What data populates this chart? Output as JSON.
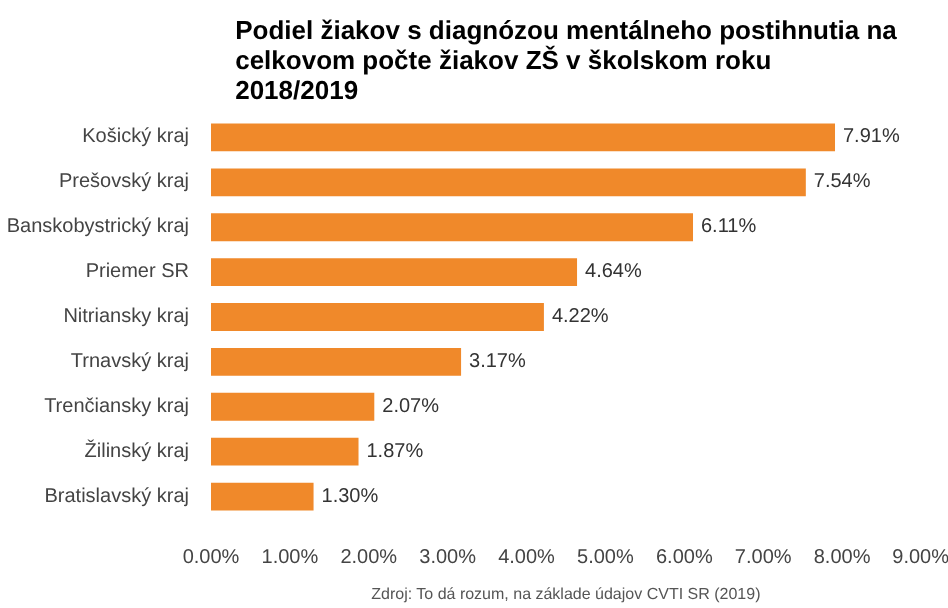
{
  "chart_data": {
    "type": "bar",
    "orientation": "horizontal",
    "title": "Podiel žiakov s diagnózou mentálneho postihnutia na\ncelkovom počte žiakov ZŠ v školskom roku\n2018/2019",
    "categories": [
      "Košický kraj",
      "Prešovský kraj",
      "Banskobystrický kraj",
      "Priemer SR",
      "Nitriansky kraj",
      "Trnavský kraj",
      "Trenčiansky kraj",
      "Žilinský kraj",
      "Bratislavský kraj"
    ],
    "values": [
      7.91,
      7.54,
      6.11,
      4.64,
      4.22,
      3.17,
      2.07,
      1.87,
      1.3
    ],
    "value_labels": [
      "7.91%",
      "7.54%",
      "6.11%",
      "4.64%",
      "4.22%",
      "3.17%",
      "2.07%",
      "1.87%",
      "1.30%"
    ],
    "color": "#f0892a",
    "xlim": [
      0,
      9
    ],
    "xticks": [
      {
        "value": 0,
        "label": "0.00%"
      },
      {
        "value": 1,
        "label": "1.00%"
      },
      {
        "value": 2,
        "label": "2.00%"
      },
      {
        "value": 3,
        "label": "3.00%"
      },
      {
        "value": 4,
        "label": "4.00%"
      },
      {
        "value": 5,
        "label": "5.00%"
      },
      {
        "value": 6,
        "label": "6.00%"
      },
      {
        "value": 7,
        "label": "7.00%"
      },
      {
        "value": 8,
        "label": "8.00%"
      },
      {
        "value": 9,
        "label": "9.00%"
      }
    ],
    "annotations": [
      "Zdroj: To dá rozum, na základe údajov CVTI SR (2019)"
    ],
    "grid": false
  }
}
